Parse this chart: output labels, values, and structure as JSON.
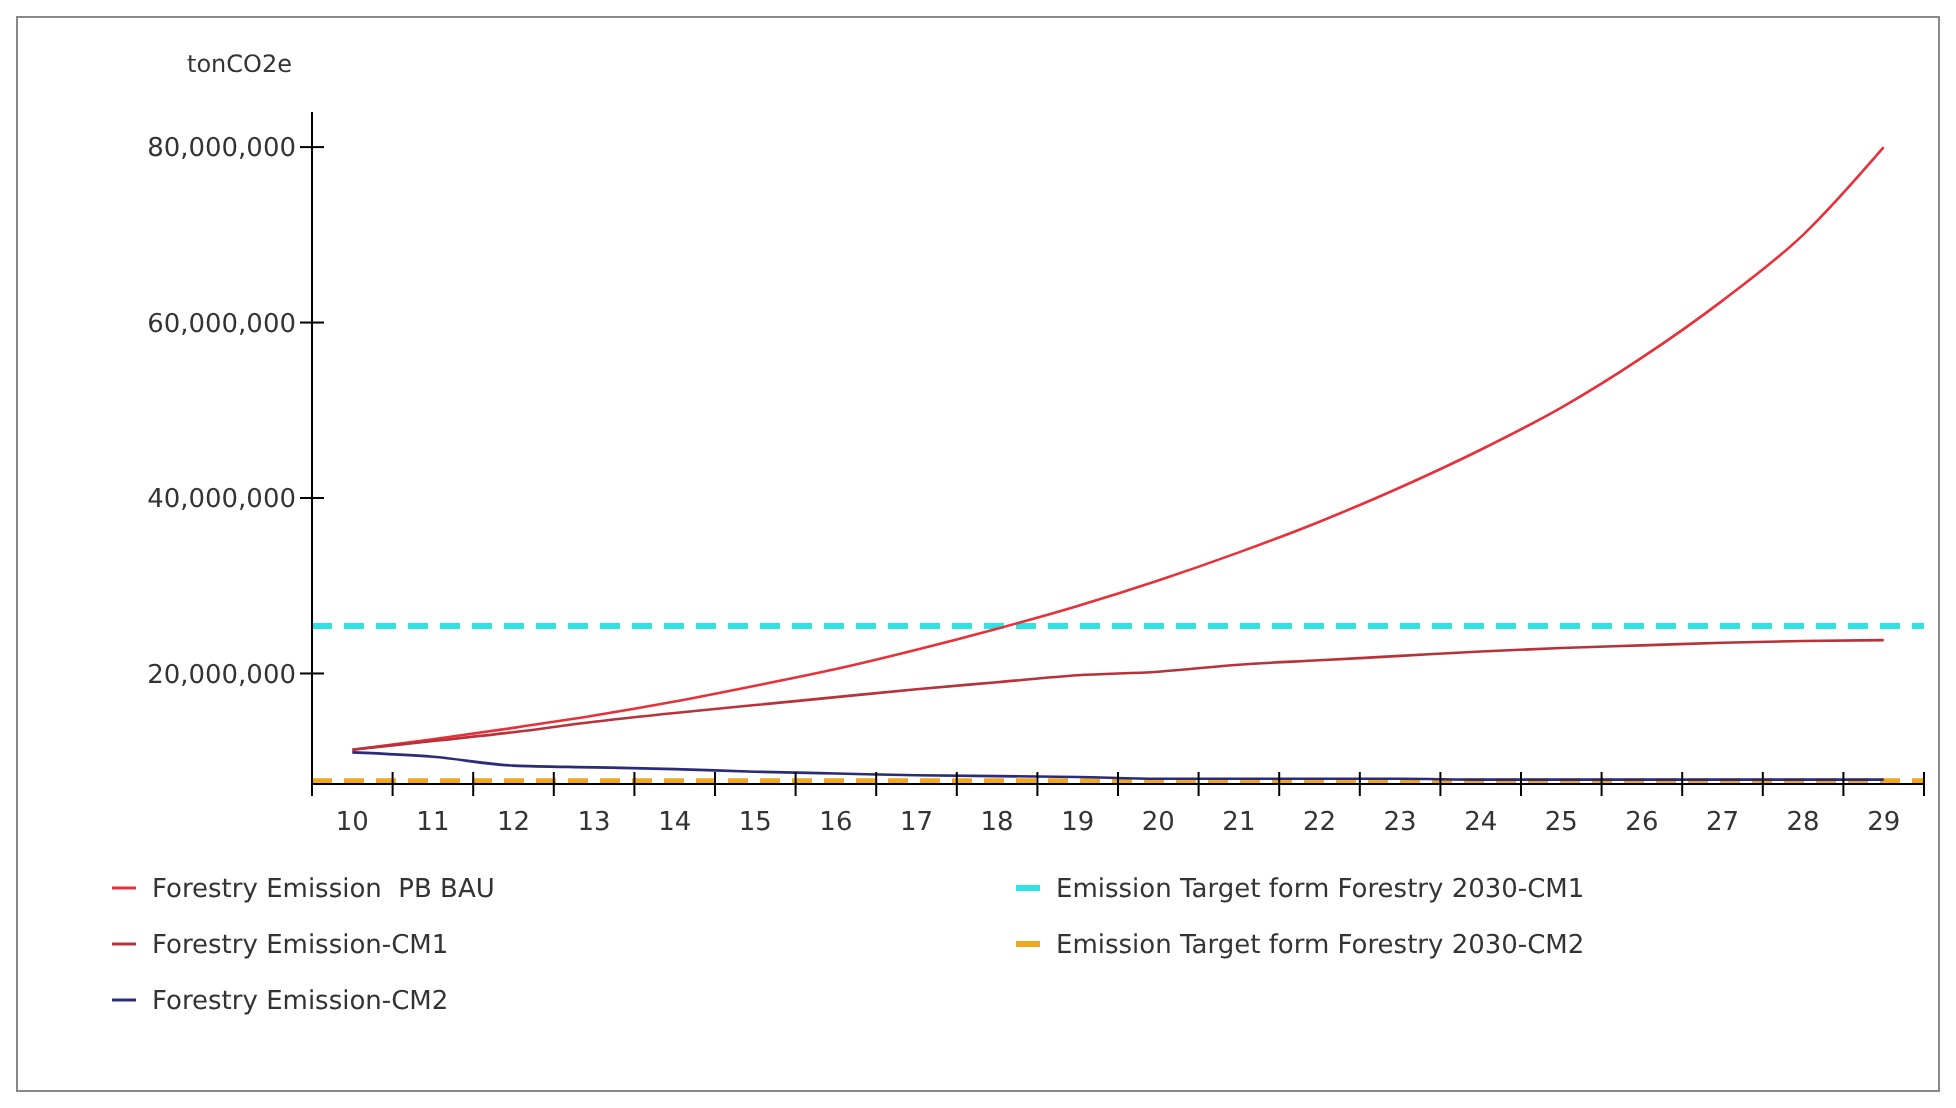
{
  "chart_data": {
    "type": "line",
    "ylabel": "tonCO2e",
    "categories": [
      "10",
      "11",
      "12",
      "13",
      "14",
      "15",
      "16",
      "17",
      "18",
      "19",
      "20",
      "21",
      "22",
      "23",
      "24",
      "25",
      "26",
      "27",
      "28",
      "29"
    ],
    "series": [
      {
        "name": "Forestry Emission  PB BAU",
        "color": "#e8303a",
        "values": [
          11300000,
          12500000,
          13800000,
          15200000,
          16800000,
          18600000,
          20500000,
          22700000,
          25100000,
          27700000,
          30600000,
          33800000,
          37300000,
          41200000,
          45500000,
          50300000,
          56000000,
          62500000,
          70000000,
          80000000
        ]
      },
      {
        "name": "Forestry Emission-CM1",
        "color": "#b8323a",
        "values": [
          11300000,
          12300000,
          13300000,
          14500000,
          15500000,
          16400000,
          17300000,
          18200000,
          19000000,
          19800000,
          20200000,
          21000000,
          21500000,
          22000000,
          22500000,
          22900000,
          23200000,
          23500000,
          23700000,
          23800000
        ]
      },
      {
        "name": "Forestry Emission-CM2",
        "color": "#2b2b7a",
        "values": [
          11000000,
          10500000,
          9500000,
          9300000,
          9100000,
          8800000,
          8600000,
          8400000,
          8300000,
          8200000,
          8000000,
          8000000,
          8000000,
          8000000,
          7900000,
          7900000,
          7900000,
          7900000,
          7900000,
          7900000
        ]
      }
    ],
    "ref_lines": [
      {
        "axis": "y",
        "value": 25400000,
        "label": "Emission Target form Forestry 2030-CM1",
        "color": "#2fe3e3",
        "line_style": "dashed"
      },
      {
        "axis": "y",
        "value": 7700000,
        "label": "Emission Target form Forestry 2030-CM2",
        "color": "#f2a81e",
        "line_style": "dashed"
      }
    ],
    "ylim": [
      7400000,
      84000000
    ],
    "yticks": [
      {
        "value": 20000000,
        "label": "20,000,000"
      },
      {
        "value": 40000000,
        "label": "40,000,000"
      },
      {
        "value": 60000000,
        "label": "60,000,000"
      },
      {
        "value": 80000000,
        "label": "80,000,000"
      }
    ],
    "grid": false,
    "legend": "bottom",
    "marker": "none",
    "line_style": "solid"
  }
}
